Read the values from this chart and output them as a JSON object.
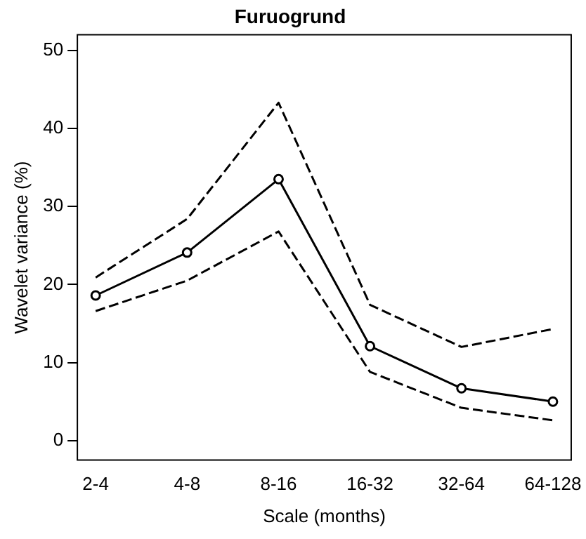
{
  "chart_data": {
    "type": "line",
    "title": "Furuogrund",
    "xlabel": "Scale (months)",
    "ylabel": "Wavelet variance (%)",
    "categories": [
      "2-4",
      "4-8",
      "8-16",
      "16-32",
      "32-64",
      "64-128"
    ],
    "series": [
      {
        "color": "#000000",
        "values": [
          18.6,
          24.1,
          33.5,
          12.1,
          6.7,
          5.0
        ]
      },
      {
        "color": "#000000",
        "values": [
          20.9,
          28.4,
          43.3,
          17.4,
          12.0,
          14.3
        ],
        "line_style": "dashed",
        "marker": "none"
      },
      {
        "color": "#000000",
        "values": [
          16.6,
          20.5,
          26.8,
          8.8,
          4.2,
          2.6
        ],
        "line_style": "dashed",
        "marker": "none"
      }
    ],
    "ylim": [
      -2.5,
      52
    ],
    "yticks": [
      0,
      10,
      20,
      30,
      40,
      50
    ],
    "grid": false,
    "legend": false,
    "marker": "circle",
    "line_style": "solid"
  }
}
